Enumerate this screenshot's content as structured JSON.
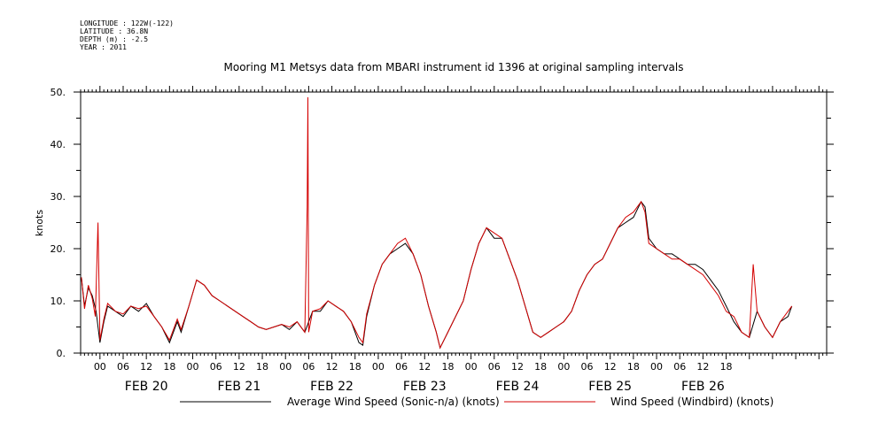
{
  "metadata": {
    "longitude": "LONGITUDE : 122W(-122)",
    "latitude": "LATITUDE : 36.8N",
    "depth": "DEPTH (m) : -2.5",
    "year": "YEAR : 2011"
  },
  "chart_data": {
    "type": "line",
    "title": "Mooring M1 Metsys data from MBARI instrument id 1396 at original sampling intervals",
    "ylabel": "knots",
    "xlabel": "",
    "ylim": [
      0,
      50
    ],
    "xlim_hours": [
      -5,
      188
    ],
    "yticks": [
      "0.",
      "10.",
      "20.",
      "30.",
      "40.",
      "50."
    ],
    "hour_ticks": [
      "00",
      "06",
      "12",
      "18",
      "00",
      "06",
      "12",
      "18",
      "00",
      "06",
      "12",
      "18",
      "00",
      "06",
      "12",
      "18",
      "00",
      "06",
      "12",
      "18",
      "00",
      "06",
      "12",
      "18",
      "00",
      "06",
      "12",
      "18"
    ],
    "date_labels": [
      "FEB 20",
      "FEB 21",
      "FEB 22",
      "FEB 23",
      "FEB 24",
      "FEB 25",
      "FEB 26"
    ],
    "x_units": "hours since 2011-02-20 00:00",
    "series": [
      {
        "name": "Average Wind Speed (Sonic-n/a) (knots)",
        "color": "#000000",
        "points": [
          [
            -4.8,
            14.5
          ],
          [
            -4,
            9
          ],
          [
            -3,
            12.5
          ],
          [
            -2,
            11
          ],
          [
            -1,
            8
          ],
          [
            0,
            2
          ],
          [
            1,
            6
          ],
          [
            2,
            9
          ],
          [
            4,
            8
          ],
          [
            6,
            7
          ],
          [
            8,
            9
          ],
          [
            10,
            8
          ],
          [
            12,
            9.5
          ],
          [
            14,
            7
          ],
          [
            16,
            5
          ],
          [
            18,
            2
          ],
          [
            20,
            6
          ],
          [
            21,
            4
          ],
          [
            23,
            9
          ],
          [
            25,
            14
          ],
          [
            27,
            13
          ],
          [
            29,
            11
          ],
          [
            31,
            10
          ],
          [
            33,
            9
          ],
          [
            35,
            8
          ],
          [
            37,
            7
          ],
          [
            39,
            6
          ],
          [
            41,
            5
          ],
          [
            43,
            4.5
          ],
          [
            45,
            5
          ],
          [
            47,
            5.5
          ],
          [
            49,
            4.5
          ],
          [
            51,
            6
          ],
          [
            53,
            4
          ],
          [
            55,
            8
          ],
          [
            57,
            8
          ],
          [
            59,
            10
          ],
          [
            61,
            9
          ],
          [
            63,
            8
          ],
          [
            65,
            6
          ],
          [
            67,
            2
          ],
          [
            68,
            1.5
          ],
          [
            69,
            7
          ],
          [
            71,
            13
          ],
          [
            73,
            17
          ],
          [
            75,
            19
          ],
          [
            77,
            20
          ],
          [
            79,
            21
          ],
          [
            81,
            19
          ],
          [
            83,
            15
          ],
          [
            85,
            9
          ],
          [
            87,
            4
          ],
          [
            88,
            1
          ],
          [
            90,
            4
          ],
          [
            92,
            7
          ],
          [
            94,
            10
          ],
          [
            96,
            16
          ],
          [
            98,
            21
          ],
          [
            100,
            24
          ],
          [
            102,
            22
          ],
          [
            104,
            22
          ],
          [
            106,
            18
          ],
          [
            108,
            14
          ],
          [
            110,
            9
          ],
          [
            112,
            4
          ],
          [
            114,
            3
          ],
          [
            116,
            4
          ],
          [
            118,
            5
          ],
          [
            120,
            6
          ],
          [
            122,
            8
          ],
          [
            124,
            12
          ],
          [
            126,
            15
          ],
          [
            128,
            17
          ],
          [
            130,
            18
          ],
          [
            132,
            21
          ],
          [
            134,
            24
          ],
          [
            136,
            25
          ],
          [
            138,
            26
          ],
          [
            140,
            29
          ],
          [
            141,
            28
          ],
          [
            142,
            22
          ],
          [
            144,
            20
          ],
          [
            146,
            19
          ],
          [
            148,
            19
          ],
          [
            150,
            18
          ],
          [
            152,
            17
          ],
          [
            154,
            17
          ],
          [
            156,
            16
          ],
          [
            158,
            14
          ],
          [
            160,
            12
          ],
          [
            162,
            9
          ],
          [
            164,
            6
          ],
          [
            166,
            4
          ],
          [
            168,
            3
          ],
          [
            170,
            8
          ],
          [
            172,
            5
          ],
          [
            174,
            3
          ],
          [
            176,
            6
          ],
          [
            178,
            7
          ],
          [
            179,
            9
          ]
        ]
      },
      {
        "name": "Wind Speed (Windbird) (knots)",
        "color": "#d40000",
        "points": [
          [
            -4.8,
            14.5
          ],
          [
            -4,
            8.5
          ],
          [
            -3,
            13
          ],
          [
            -2,
            10.5
          ],
          [
            -1.2,
            7
          ],
          [
            -0.5,
            25
          ],
          [
            0,
            2.5
          ],
          [
            1,
            6.5
          ],
          [
            2,
            9.5
          ],
          [
            4,
            8
          ],
          [
            6,
            7.5
          ],
          [
            8,
            9
          ],
          [
            10,
            8.5
          ],
          [
            12,
            9
          ],
          [
            14,
            7
          ],
          [
            16,
            5
          ],
          [
            18,
            2.5
          ],
          [
            20,
            6.5
          ],
          [
            21,
            4.5
          ],
          [
            23,
            9
          ],
          [
            25,
            14
          ],
          [
            27,
            13
          ],
          [
            29,
            11
          ],
          [
            31,
            10
          ],
          [
            33,
            9
          ],
          [
            35,
            8
          ],
          [
            37,
            7
          ],
          [
            39,
            6
          ],
          [
            41,
            5
          ],
          [
            43,
            4.5
          ],
          [
            45,
            5
          ],
          [
            47,
            5.5
          ],
          [
            49,
            5
          ],
          [
            51,
            6
          ],
          [
            53,
            4
          ],
          [
            53.6,
            28
          ],
          [
            53.8,
            49
          ],
          [
            54,
            4
          ],
          [
            55,
            8
          ],
          [
            57,
            8.5
          ],
          [
            59,
            10
          ],
          [
            61,
            9
          ],
          [
            63,
            8
          ],
          [
            65,
            6
          ],
          [
            67,
            3
          ],
          [
            68,
            2
          ],
          [
            69,
            7.5
          ],
          [
            71,
            13
          ],
          [
            73,
            17
          ],
          [
            75,
            19
          ],
          [
            77,
            21
          ],
          [
            79,
            22
          ],
          [
            81,
            19
          ],
          [
            83,
            15
          ],
          [
            85,
            9
          ],
          [
            87,
            4
          ],
          [
            88,
            1
          ],
          [
            90,
            4
          ],
          [
            92,
            7
          ],
          [
            94,
            10
          ],
          [
            96,
            16
          ],
          [
            98,
            21
          ],
          [
            100,
            24
          ],
          [
            102,
            23
          ],
          [
            104,
            22
          ],
          [
            106,
            18
          ],
          [
            108,
            14
          ],
          [
            110,
            9
          ],
          [
            112,
            4
          ],
          [
            114,
            3
          ],
          [
            116,
            4
          ],
          [
            118,
            5
          ],
          [
            120,
            6
          ],
          [
            122,
            8
          ],
          [
            124,
            12
          ],
          [
            126,
            15
          ],
          [
            128,
            17
          ],
          [
            130,
            18
          ],
          [
            132,
            21
          ],
          [
            134,
            24
          ],
          [
            136,
            26
          ],
          [
            138,
            27
          ],
          [
            140,
            29
          ],
          [
            141,
            27
          ],
          [
            142,
            21
          ],
          [
            144,
            20
          ],
          [
            146,
            19
          ],
          [
            148,
            18
          ],
          [
            150,
            18
          ],
          [
            152,
            17
          ],
          [
            154,
            16
          ],
          [
            156,
            15
          ],
          [
            158,
            13
          ],
          [
            160,
            11
          ],
          [
            162,
            8
          ],
          [
            164,
            7
          ],
          [
            166,
            4
          ],
          [
            168,
            3
          ],
          [
            169,
            17
          ],
          [
            170,
            8
          ],
          [
            172,
            5
          ],
          [
            174,
            3
          ],
          [
            176,
            6
          ],
          [
            178,
            8
          ],
          [
            179,
            9
          ]
        ]
      }
    ],
    "legend_placement": "bottom",
    "grid": false
  }
}
